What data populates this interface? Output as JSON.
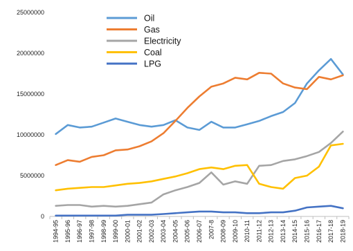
{
  "chart_data": {
    "type": "line",
    "title": "",
    "xlabel": "",
    "ylabel": "",
    "ylim": [
      0,
      25000000
    ],
    "y_ticks": [
      0,
      5000000,
      10000000,
      15000000,
      20000000,
      25000000
    ],
    "y_tick_labels": [
      "0",
      "5000000",
      "10000000",
      "15000000",
      "20000000",
      "25000000"
    ],
    "grid": false,
    "legend_position": "top-left",
    "categories": [
      "1994-95",
      "1995-96",
      "1996-97",
      "1997-98",
      "1998-99",
      "1999-00",
      "2000-01",
      "2001-02",
      "2002-03",
      "2003-04",
      "2004-05",
      "2005-06",
      "2006-07",
      "2007-8",
      "2008-09",
      "2009-10",
      "2010-11",
      "2011-12",
      "2012-13",
      "2013-14",
      "2014-15",
      "2015-16",
      "2016-17",
      "2017-18",
      "2018-19"
    ],
    "series": [
      {
        "name": "Oil",
        "color": "#5b9bd5",
        "values": [
          10100000,
          11200000,
          10900000,
          11000000,
          11500000,
          12000000,
          11600000,
          11200000,
          11000000,
          11200000,
          11800000,
          10900000,
          10600000,
          11600000,
          10900000,
          10900000,
          11300000,
          11700000,
          12300000,
          12800000,
          13900000,
          16300000,
          17900000,
          19300000,
          17400000
        ]
      },
      {
        "name": "Gas",
        "color": "#ed7d31",
        "values": [
          6300000,
          6900000,
          6700000,
          7300000,
          7500000,
          8100000,
          8200000,
          8600000,
          9200000,
          10200000,
          11700000,
          13300000,
          14700000,
          15900000,
          16300000,
          17000000,
          16800000,
          17600000,
          17500000,
          16300000,
          15800000,
          15600000,
          17100000,
          16800000,
          17300000
        ]
      },
      {
        "name": "Electricity",
        "color": "#a5a5a5",
        "values": [
          1300000,
          1400000,
          1400000,
          1200000,
          1300000,
          1200000,
          1300000,
          1500000,
          1700000,
          2700000,
          3200000,
          3600000,
          4100000,
          5400000,
          3900000,
          4300000,
          4000000,
          6200000,
          6300000,
          6800000,
          7000000,
          7400000,
          7900000,
          9000000,
          10400000
        ]
      },
      {
        "name": "Coal",
        "color": "#ffc000",
        "values": [
          3200000,
          3400000,
          3500000,
          3600000,
          3600000,
          3800000,
          4000000,
          4100000,
          4300000,
          4600000,
          4900000,
          5300000,
          5800000,
          6000000,
          5800000,
          6200000,
          6300000,
          4000000,
          3600000,
          3400000,
          4700000,
          5000000,
          6100000,
          8700000,
          8900000
        ]
      },
      {
        "name": "LPG",
        "color": "#4472c4",
        "values": [
          100000,
          100000,
          100000,
          100000,
          100000,
          100000,
          200000,
          200000,
          200000,
          300000,
          400000,
          500000,
          600000,
          600000,
          500000,
          500000,
          400000,
          400000,
          500000,
          500000,
          700000,
          1100000,
          1200000,
          1300000,
          1000000
        ]
      }
    ]
  }
}
